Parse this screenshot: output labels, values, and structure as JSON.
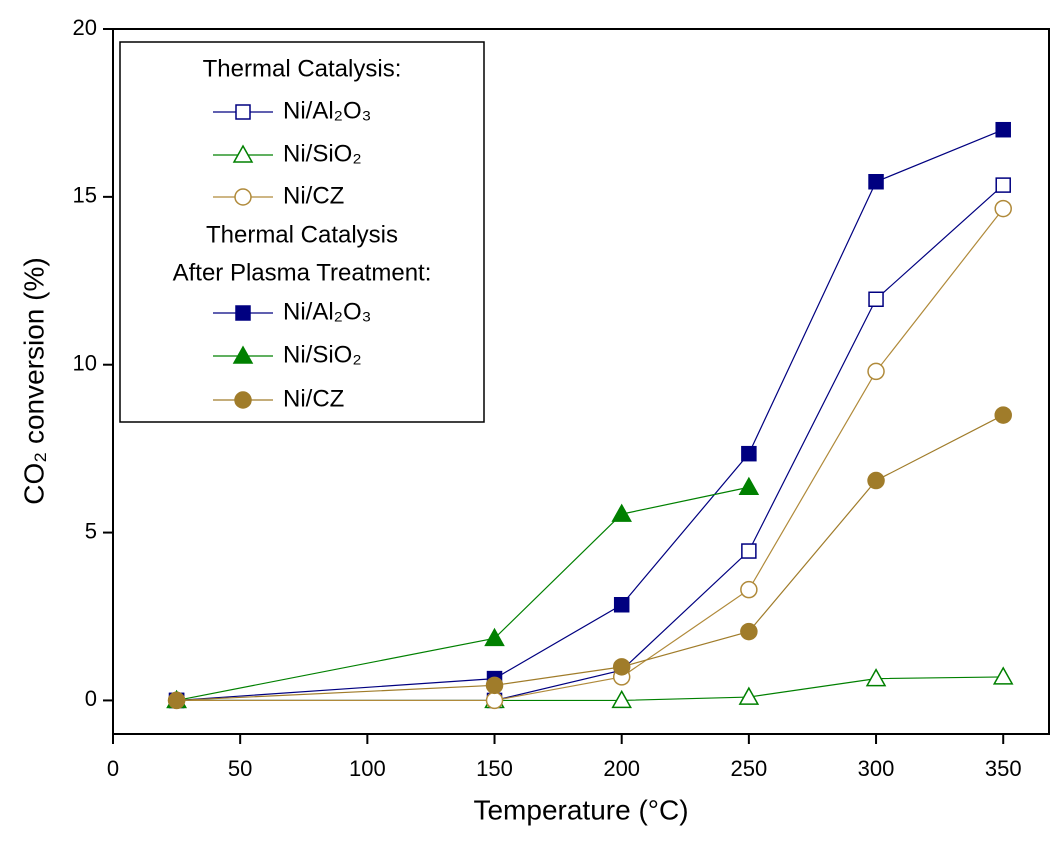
{
  "chart_data": {
    "type": "line",
    "xlabel": "Temperature (°C)",
    "ylabel": "CO₂ conversion (%)",
    "x": [
      25,
      150,
      200,
      250,
      300,
      350
    ],
    "xlim": [
      0,
      368
    ],
    "xticks": [
      0,
      50,
      100,
      150,
      200,
      250,
      300,
      350
    ],
    "ylim": [
      -1,
      20
    ],
    "yticks": [
      0,
      5,
      10,
      15,
      20
    ],
    "legend_titles": [
      "Thermal Catalysis:",
      "Thermal Catalysis",
      "After Plasma Treatment:"
    ],
    "series": [
      {
        "name": "Ni/Al₂O₃",
        "color": "#000080",
        "marker": "square",
        "fill": "open",
        "values": [
          0,
          0,
          0.9,
          4.45,
          11.95,
          15.35
        ]
      },
      {
        "name": "Ni/SiO₂",
        "color": "#008000",
        "marker": "triangle",
        "fill": "open",
        "values": [
          0,
          0,
          0,
          0.1,
          0.65,
          0.7
        ]
      },
      {
        "name": "Ni/CZ",
        "color": "#b08a3a",
        "marker": "circle",
        "fill": "open",
        "values": [
          0,
          0,
          0.7,
          3.3,
          9.8,
          14.65
        ]
      },
      {
        "name": "Ni/Al₂O₃",
        "color": "#000080",
        "marker": "square",
        "fill": "filled",
        "values": [
          0,
          0.65,
          2.85,
          7.35,
          15.45,
          17
        ]
      },
      {
        "name": "Ni/SiO₂",
        "color": "#008000",
        "marker": "triangle",
        "fill": "filled",
        "values": [
          0,
          1.85,
          5.55,
          6.35,
          null,
          null
        ]
      },
      {
        "name": "Ni/CZ",
        "color": "#a07c2a",
        "marker": "circle",
        "fill": "filled",
        "values": [
          0,
          0.45,
          1.0,
          2.05,
          6.55,
          8.5
        ]
      }
    ]
  }
}
